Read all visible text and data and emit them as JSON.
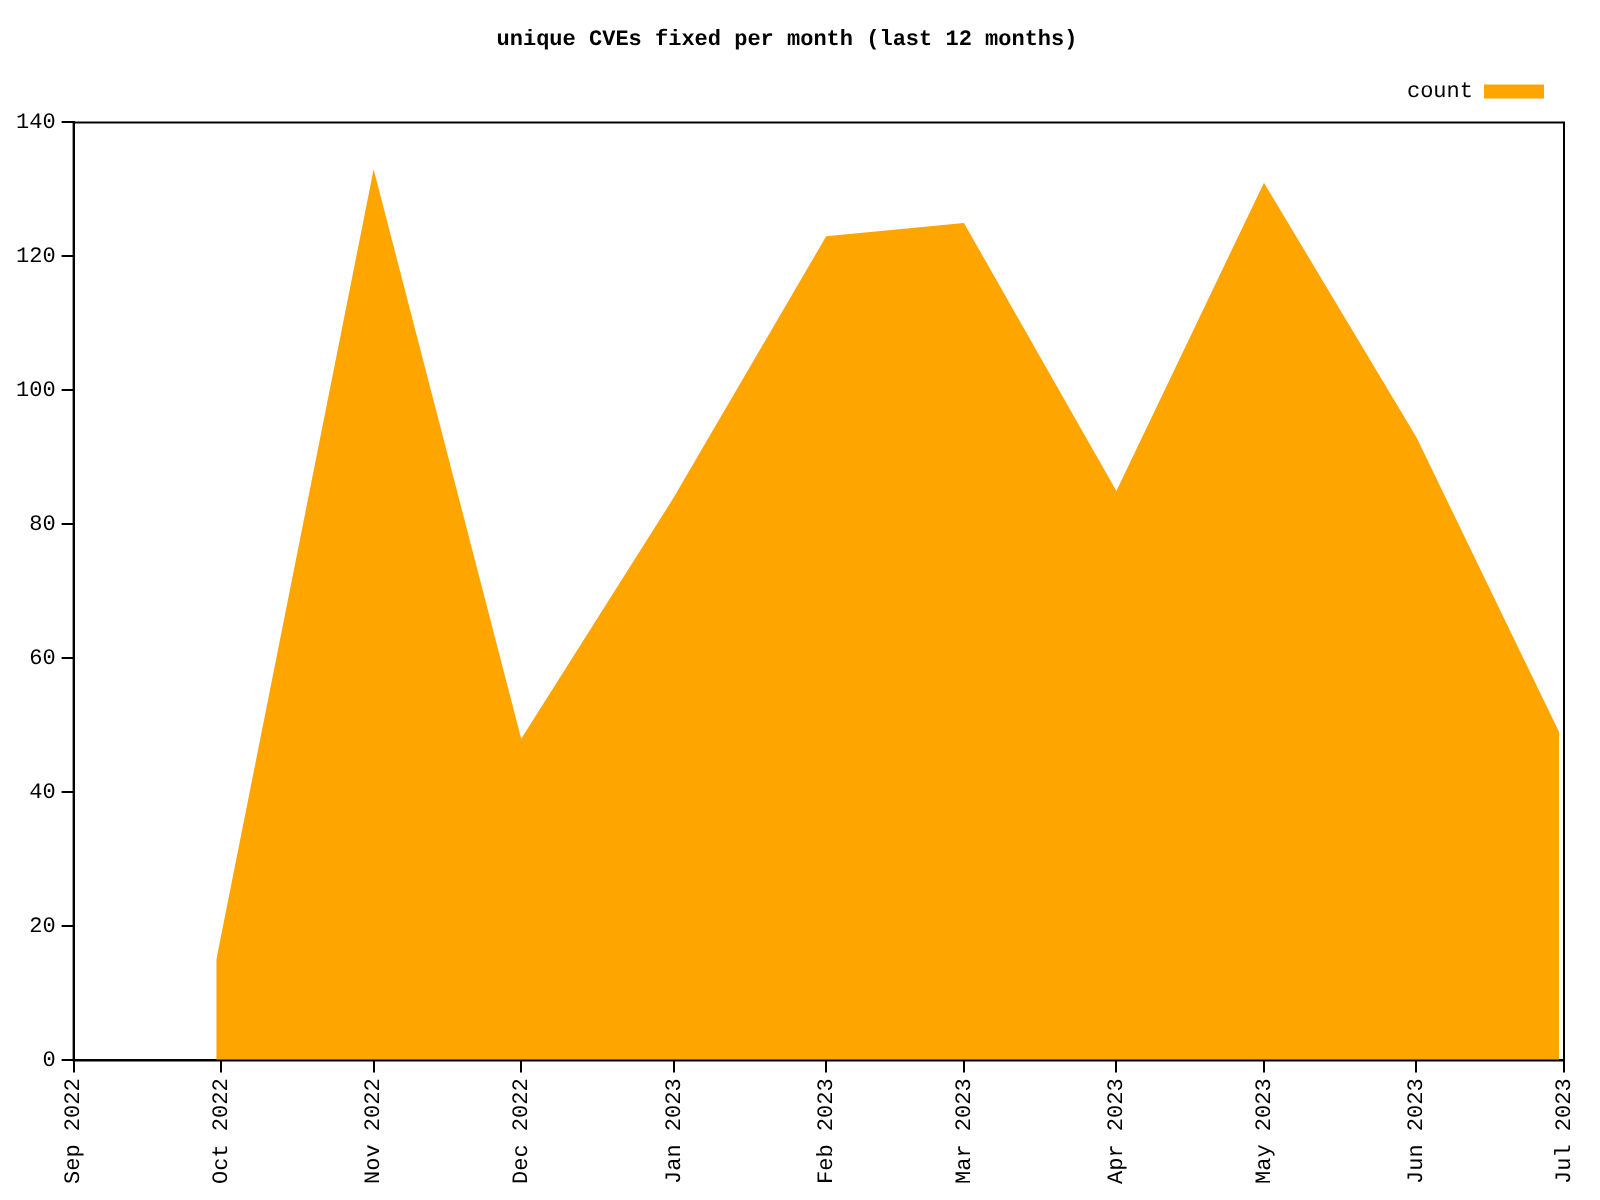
{
  "chart_data": {
    "type": "area",
    "title": "unique CVEs fixed per month (last 12 months)",
    "x": [
      "2022-09-30",
      "2022-11-01",
      "2022-12-01",
      "2023-01-01",
      "2023-02-01",
      "2023-03-01",
      "2023-04-01",
      "2023-05-01",
      "2023-06-01",
      "2023-06-30"
    ],
    "series": [
      {
        "name": "count",
        "color": "#ffa500",
        "values": [
          15,
          133,
          48,
          84,
          123,
          125,
          85,
          131,
          93,
          49
        ]
      }
    ],
    "xlim": [
      "2022-09-01",
      "2023-07-01"
    ],
    "xticks": [
      {
        "value": "2022-09-01",
        "label": "Sep 2022"
      },
      {
        "value": "2022-10-01",
        "label": "Oct 2022"
      },
      {
        "value": "2022-11-01",
        "label": "Nov 2022"
      },
      {
        "value": "2022-12-01",
        "label": "Dec 2022"
      },
      {
        "value": "2023-01-01",
        "label": "Jan 2023"
      },
      {
        "value": "2023-02-01",
        "label": "Feb 2023"
      },
      {
        "value": "2023-03-01",
        "label": "Mar 2023"
      },
      {
        "value": "2023-04-01",
        "label": "Apr 2023"
      },
      {
        "value": "2023-05-01",
        "label": "May 2023"
      },
      {
        "value": "2023-06-01",
        "label": "Jun 2023"
      },
      {
        "value": "2023-07-01",
        "label": "Jul 2023"
      }
    ],
    "ylim": [
      0,
      140
    ],
    "yticks": [
      0,
      20,
      40,
      60,
      80,
      100,
      120,
      140
    ],
    "grid": false,
    "legend": "top right"
  }
}
